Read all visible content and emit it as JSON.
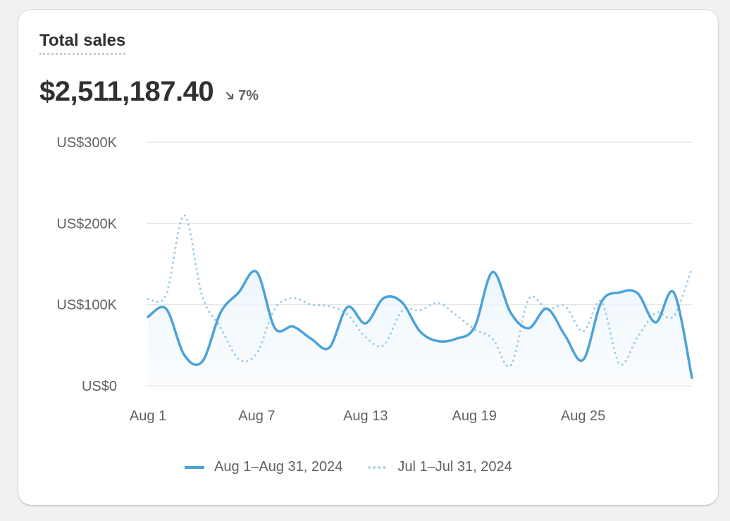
{
  "card": {
    "title": "Total sales",
    "value": "$2,511,187.40",
    "delta": "7%",
    "delta_direction": "down"
  },
  "colors": {
    "primary": "#4aa3d8",
    "comparison": "#9ccbe6",
    "grid": "#e6e6e6",
    "area": "#eef6fc"
  },
  "chart_data": {
    "type": "line",
    "ylim": [
      0,
      300000
    ],
    "y_ticks": [
      0,
      100000,
      200000,
      300000
    ],
    "y_tick_labels": [
      "US$0",
      "US$100K",
      "US$200K",
      "US$300K"
    ],
    "x_tick_days": [
      1,
      7,
      13,
      19,
      25
    ],
    "x_tick_labels": [
      "Aug 1",
      "Aug 7",
      "Aug 13",
      "Aug 19",
      "Aug 25"
    ],
    "series": [
      {
        "name": "Aug 1–Aug 31, 2024",
        "style": "solid",
        "x": [
          1,
          2,
          3,
          4,
          5,
          6,
          7,
          8,
          9,
          10,
          11,
          12,
          13,
          14,
          15,
          16,
          17,
          18,
          19,
          20,
          21,
          22,
          23,
          24,
          25,
          26,
          27,
          28,
          29,
          30,
          31
        ],
        "values": [
          85000,
          95000,
          38000,
          30000,
          90000,
          115000,
          140000,
          71000,
          73000,
          58000,
          47000,
          97000,
          77000,
          108000,
          103000,
          67000,
          55000,
          58000,
          72000,
          140000,
          90000,
          71000,
          95000,
          62000,
          32000,
          103000,
          115000,
          114000,
          78000,
          115000,
          10000
        ]
      },
      {
        "name": "Jul 1–Jul 31, 2024",
        "style": "dotted",
        "x": [
          1,
          2,
          3,
          4,
          5,
          6,
          7,
          8,
          9,
          10,
          11,
          12,
          13,
          14,
          15,
          16,
          17,
          18,
          19,
          20,
          21,
          22,
          23,
          24,
          25,
          26,
          27,
          28,
          29,
          30,
          31
        ],
        "values": [
          107000,
          112000,
          210000,
          110000,
          72000,
          33000,
          40000,
          95000,
          108000,
          100000,
          98000,
          88000,
          60000,
          50000,
          92000,
          93000,
          102000,
          87000,
          70000,
          58000,
          25000,
          107000,
          94000,
          98000,
          67000,
          104000,
          27000,
          60000,
          90000,
          86000,
          145000
        ]
      }
    ]
  }
}
